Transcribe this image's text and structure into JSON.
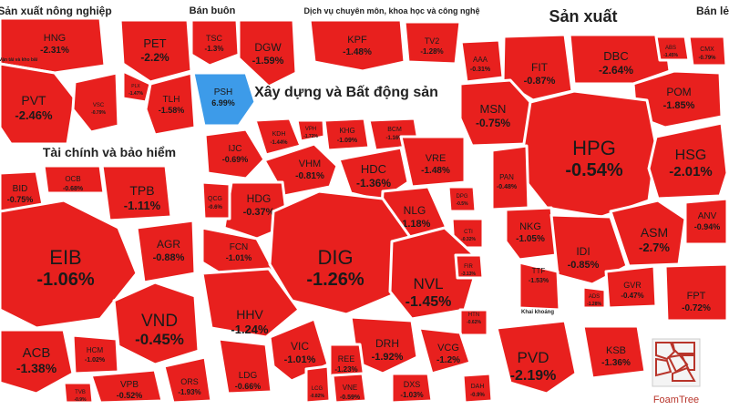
{
  "chart_data": {
    "type": "treemap",
    "groups": [
      {
        "name": "Sản xuất nông nghiệp",
        "stocks": [
          {
            "ticker": "HNG",
            "change": "-2.31%"
          },
          {
            "ticker": "PVT",
            "change": "-2.46%"
          },
          {
            "ticker": "VSC",
            "change": "-0.79%"
          }
        ]
      },
      {
        "name": "Vận tải và kho bãi",
        "stocks": []
      },
      {
        "name": "Bán buôn",
        "stocks": [
          {
            "ticker": "PET",
            "change": "-2.2%"
          },
          {
            "ticker": "TSC",
            "change": "-1.3%"
          },
          {
            "ticker": "DGW",
            "change": "-1.59%"
          },
          {
            "ticker": "TLH",
            "change": "-1.58%"
          },
          {
            "ticker": "PSH",
            "change": "6.99%"
          },
          {
            "ticker": "PLX",
            "change": "-1.47%"
          }
        ]
      },
      {
        "name": "Dịch vụ chuyên môn, khoa học và công nghệ",
        "stocks": [
          {
            "ticker": "KPF",
            "change": "-1.48%"
          },
          {
            "ticker": "TV2",
            "change": "-1.28%"
          }
        ]
      },
      {
        "name": "Sản xuất",
        "stocks": [
          {
            "ticker": "AAA",
            "change": "-0.31%"
          },
          {
            "ticker": "FIT",
            "change": "-0.87%"
          },
          {
            "ticker": "DBC",
            "change": "-2.64%"
          },
          {
            "ticker": "POM",
            "change": "-1.85%"
          },
          {
            "ticker": "MSN",
            "change": "-0.75%"
          },
          {
            "ticker": "HPG",
            "change": "-0.54%"
          },
          {
            "ticker": "HSG",
            "change": "-2.01%"
          },
          {
            "ticker": "PAN",
            "change": "-0.48%"
          },
          {
            "ticker": "NKG",
            "change": "-1.05%"
          },
          {
            "ticker": "ASM",
            "change": "-2.7%"
          },
          {
            "ticker": "IDI",
            "change": "-0.85%"
          },
          {
            "ticker": "ANV",
            "change": "-0.94%"
          },
          {
            "ticker": "TTF",
            "change": "-1.53%"
          },
          {
            "ticker": "GVR",
            "change": "-0.47%"
          },
          {
            "ticker": "ADS",
            "change": "-1.28%"
          },
          {
            "ticker": "ABS",
            "change": "-1.45%"
          },
          {
            "ticker": "CMX",
            "change": "-0.79%"
          }
        ]
      },
      {
        "name": "Bán lẻ",
        "stocks": [
          {
            "ticker": "FPT",
            "change": "-0.72%"
          }
        ]
      },
      {
        "name": "Xây dựng và Bất động sản",
        "stocks": [
          {
            "ticker": "IJC",
            "change": "-0.69%"
          },
          {
            "ticker": "KDH",
            "change": "-1.44%"
          },
          {
            "ticker": "VPH",
            "change": "-1.72%"
          },
          {
            "ticker": "KHG",
            "change": "-1.09%"
          },
          {
            "ticker": "BCM",
            "change": "-1.16%"
          },
          {
            "ticker": "VHM",
            "change": "-0.81%"
          },
          {
            "ticker": "HDC",
            "change": "-1.36%"
          },
          {
            "ticker": "VRE",
            "change": "-1.48%"
          },
          {
            "ticker": "HDG",
            "change": "-0.37%"
          },
          {
            "ticker": "QCG",
            "change": "-0.6%"
          },
          {
            "ticker": "NLG",
            "change": "-1.18%"
          },
          {
            "ticker": "DPG",
            "change": "-0.5%"
          },
          {
            "ticker": "FCN",
            "change": "-1.01%"
          },
          {
            "ticker": "DIG",
            "change": "-1.26%"
          },
          {
            "ticker": "CTI",
            "change": "-0.32%"
          },
          {
            "ticker": "NVL",
            "change": "-1.45%"
          },
          {
            "ticker": "FIR",
            "change": "-3.13%"
          },
          {
            "ticker": "HHV",
            "change": "-1.24%"
          },
          {
            "ticker": "HTN",
            "change": "-0.62%"
          },
          {
            "ticker": "DRH",
            "change": "-1.92%"
          },
          {
            "ticker": "VIC",
            "change": "-1.01%"
          },
          {
            "ticker": "REE",
            "change": "-1.23%"
          },
          {
            "ticker": "VCG",
            "change": "-1.2%"
          },
          {
            "ticker": "LDG",
            "change": "-0.66%"
          },
          {
            "ticker": "LCG",
            "change": "-0.82%"
          },
          {
            "ticker": "VNE",
            "change": "-0.59%"
          },
          {
            "ticker": "DXS",
            "change": "-1.03%"
          },
          {
            "ticker": "DAH",
            "change": "-0.9%"
          }
        ]
      },
      {
        "name": "Tài chính và bảo hiểm",
        "stocks": [
          {
            "ticker": "BID",
            "change": "-0.75%"
          },
          {
            "ticker": "OCB",
            "change": "-0.68%"
          },
          {
            "ticker": "TPB",
            "change": "-1.11%"
          },
          {
            "ticker": "EIB",
            "change": "-1.06%"
          },
          {
            "ticker": "AGR",
            "change": "-0.88%"
          },
          {
            "ticker": "VND",
            "change": "-0.45%"
          },
          {
            "ticker": "ACB",
            "change": "-1.38%"
          },
          {
            "ticker": "HCM",
            "change": "-1.02%"
          },
          {
            "ticker": "VPB",
            "change": "-0.52%"
          },
          {
            "ticker": "ORS",
            "change": "-1.93%"
          },
          {
            "ticker": "TVB",
            "change": "-0.9%"
          }
        ]
      },
      {
        "name": "Khai khoáng",
        "stocks": [
          {
            "ticker": "PVD",
            "change": "-2.19%"
          },
          {
            "ticker": "KSB",
            "change": "-1.36%"
          }
        ]
      }
    ],
    "colors": {
      "down": "#e8201e",
      "up": "#3d9be9",
      "border": "#ffffff",
      "label_group": "#222222"
    }
  },
  "branding": {
    "name": "FoamTree",
    "color": "#b8342a"
  }
}
